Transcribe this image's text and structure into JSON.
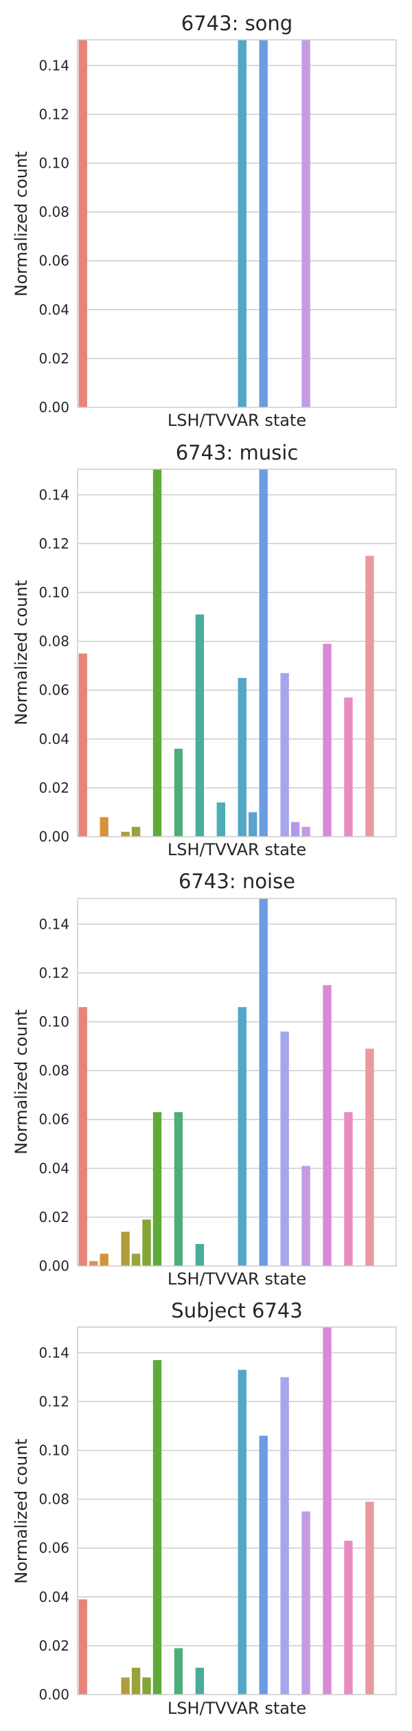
{
  "chart_data": [
    {
      "type": "bar",
      "title": "6743: song",
      "xlabel": "LSH/TVVAR state",
      "ylabel": "Normalized count",
      "ylim": [
        0,
        0.15
      ],
      "yticks": [
        "0.00",
        "0.02",
        "0.04",
        "0.06",
        "0.08",
        "0.10",
        "0.12",
        "0.14"
      ],
      "grid": "horizontal",
      "values": [
        0.15,
        0,
        0,
        0,
        0,
        0,
        0,
        0,
        0,
        0,
        0,
        0,
        0,
        0,
        0,
        0.15,
        0,
        0.15,
        0,
        0,
        0,
        0.15,
        0,
        0,
        0,
        0,
        0,
        0,
        0,
        0
      ]
    },
    {
      "type": "bar",
      "title": "6743: music",
      "xlabel": "LSH/TVVAR state",
      "ylabel": "Normalized count",
      "ylim": [
        0,
        0.15
      ],
      "yticks": [
        "0.00",
        "0.02",
        "0.04",
        "0.06",
        "0.08",
        "0.10",
        "0.12",
        "0.14"
      ],
      "grid": "horizontal",
      "values": [
        0.075,
        0,
        0.008,
        0,
        0.002,
        0.004,
        0,
        0.15,
        0,
        0.036,
        0,
        0.091,
        0,
        0.014,
        0,
        0.065,
        0.01,
        0.15,
        0,
        0.067,
        0.006,
        0.004,
        0,
        0.079,
        0,
        0.057,
        0,
        0.115,
        0,
        0
      ]
    },
    {
      "type": "bar",
      "title": "6743: noise",
      "xlabel": "LSH/TVVAR state",
      "ylabel": "Normalized count",
      "ylim": [
        0,
        0.15
      ],
      "yticks": [
        "0.00",
        "0.02",
        "0.04",
        "0.06",
        "0.08",
        "0.10",
        "0.12",
        "0.14"
      ],
      "grid": "horizontal",
      "values": [
        0.106,
        0.002,
        0.005,
        0,
        0.014,
        0.005,
        0.019,
        0.063,
        0,
        0.063,
        0,
        0.009,
        0,
        0,
        0,
        0.106,
        0,
        0.15,
        0,
        0.096,
        0,
        0.041,
        0,
        0.115,
        0,
        0.063,
        0,
        0.089,
        0,
        0
      ]
    },
    {
      "type": "bar",
      "title": "Subject 6743",
      "xlabel": "LSH/TVVAR state",
      "ylabel": "Normalized count",
      "ylim": [
        0,
        0.15
      ],
      "yticks": [
        "0.00",
        "0.02",
        "0.04",
        "0.06",
        "0.08",
        "0.10",
        "0.12",
        "0.14"
      ],
      "grid": "horizontal",
      "values": [
        0.039,
        0,
        0,
        0,
        0.007,
        0.011,
        0.007,
        0.137,
        0,
        0.019,
        0,
        0.011,
        0,
        0,
        0,
        0.133,
        0,
        0.106,
        0,
        0.13,
        0,
        0.075,
        0,
        0.15,
        0,
        0.063,
        0,
        0.079,
        0,
        0
      ]
    }
  ],
  "palette": [
    "#e8837a",
    "#e48d5c",
    "#d5933c",
    "#c39b3d",
    "#b09d3c",
    "#9aa23a",
    "#82a534",
    "#5fab3a",
    "#4aae57",
    "#4caf7a",
    "#49aa8a",
    "#4aad9c",
    "#4bada8",
    "#4baeb4",
    "#4eacc0",
    "#52a7c7",
    "#58a3d0",
    "#6b9ce0",
    "#8c9fe8",
    "#a4a7ec",
    "#b09ae7",
    "#c39be4",
    "#ce92dc",
    "#d98ad7",
    "#e287d0",
    "#e88dc2",
    "#ea93b0",
    "#eb99a0",
    "#ea9c92",
    "#e89988"
  ]
}
